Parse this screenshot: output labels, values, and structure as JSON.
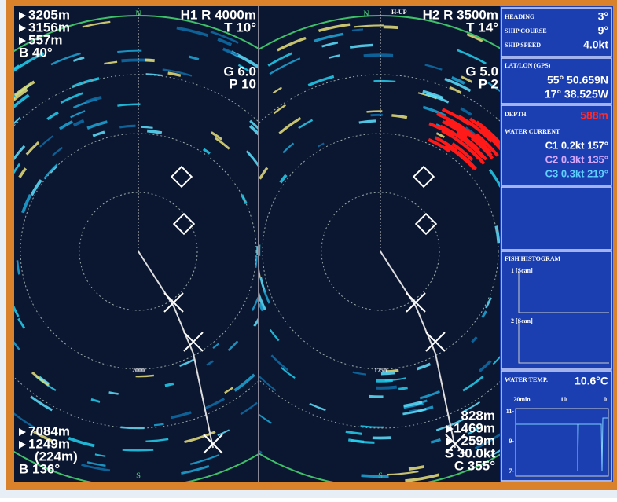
{
  "left_sonar": {
    "north": "N",
    "south": "S",
    "range_ring": "2000",
    "top_left": [
      "3205m",
      "3156m",
      "557m",
      "B 40°"
    ],
    "top_right": [
      "H1 R 4000m",
      "T 10°",
      "G 6.0",
      "P 10"
    ],
    "bottom_left": [
      "7084m",
      "1249m",
      "(224m)",
      "B 136°"
    ]
  },
  "right_sonar": {
    "north": "N",
    "south": "S",
    "mode": "H-UP",
    "range_ring": "1750",
    "top_right": [
      "H2 R 3500m",
      "T 14°",
      "G 5.0",
      "P 2"
    ],
    "bottom_right": [
      "828m",
      "1469m",
      "259m",
      "S 30.0kt",
      "C 355°"
    ]
  },
  "info": {
    "ship": [
      [
        "HEADING",
        "3°"
      ],
      [
        "SHIP COURSE",
        "9°"
      ],
      [
        "SHIP SPEED",
        "4.0kt"
      ]
    ],
    "position": {
      "label": "LAT/LON (GPS)",
      "lat": "55° 50.659N",
      "lon": "17° 38.525W"
    },
    "depth": {
      "label": "DEPTH",
      "value": "588m"
    },
    "current": {
      "label": "WATER CURRENT",
      "rows": [
        "C1 0.2kt 157°",
        "C2 0.3kt 135°",
        "C3 0.3kt 219°"
      ]
    },
    "histogram": {
      "label": "FISH HISTOGRAM",
      "panels": [
        "1 [Scan]",
        "2 [Scan]"
      ]
    },
    "temperature": {
      "label": "WATER TEMP.",
      "value": "10.6°C",
      "time_labels": [
        "20min",
        "10",
        "0"
      ],
      "scale_labels": [
        "11-",
        "9-",
        "7-"
      ]
    }
  }
}
